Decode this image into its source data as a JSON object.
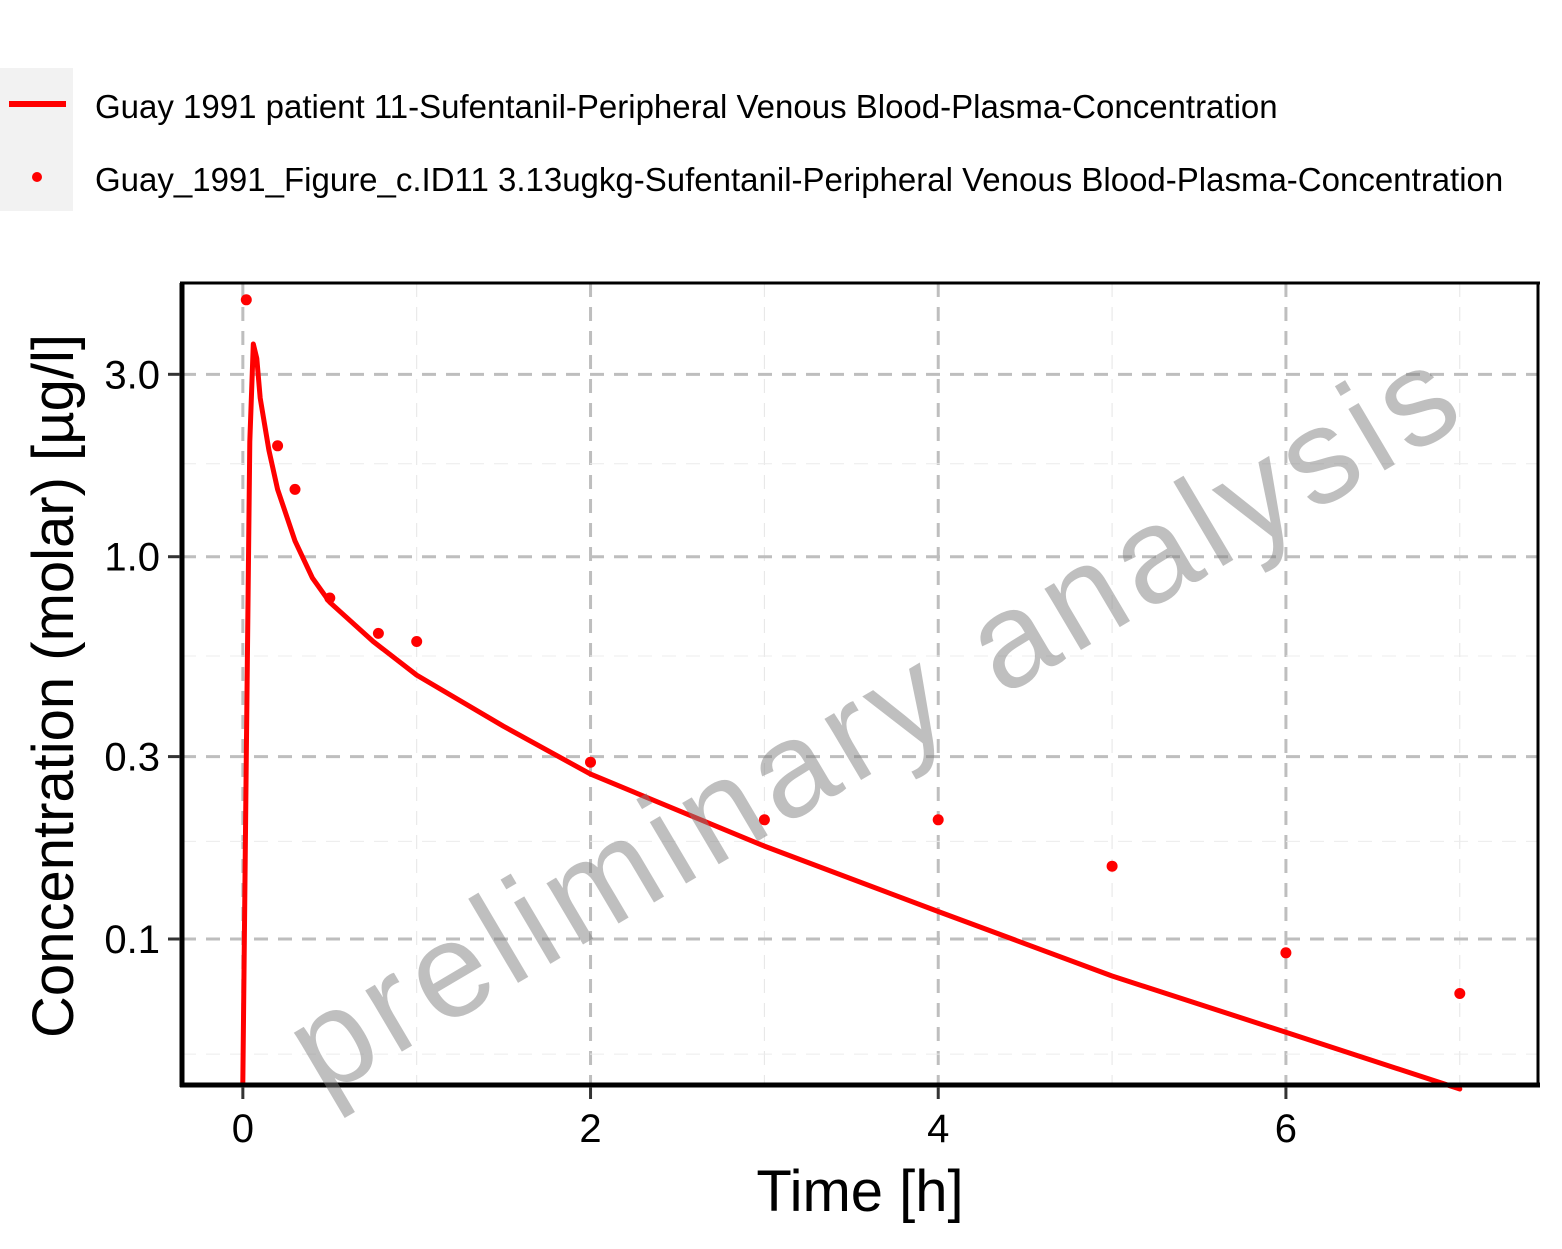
{
  "chart_data": {
    "type": "line",
    "xlabel": "Time [h]",
    "ylabel": "Concentration (molar) [µg/l]",
    "x_scale": "linear",
    "y_scale": "log",
    "xlim": [
      -0.35,
      7.45
    ],
    "ylim": [
      0.0415,
      5.2
    ],
    "x_ticks": [
      {
        "value": 0,
        "label": "0"
      },
      {
        "value": 2,
        "label": "2"
      },
      {
        "value": 4,
        "label": "4"
      },
      {
        "value": 6,
        "label": "6"
      }
    ],
    "y_ticks": [
      {
        "value": 0.1,
        "label": "0.1"
      },
      {
        "value": 0.3,
        "label": "0.3"
      },
      {
        "value": 1.0,
        "label": "1.0"
      },
      {
        "value": 3.0,
        "label": "3.0"
      }
    ],
    "grid": true,
    "legend_position": "top",
    "watermark": "preliminary analysis",
    "series": [
      {
        "name": "Guay 1991 patient 11-Sufentanil-Peripheral Venous Blood-Plasma-Concentration",
        "kind": "line",
        "color": "#ff0000",
        "points": [
          [
            0.0,
            0.0415
          ],
          [
            0.02,
            0.3
          ],
          [
            0.04,
            2.0
          ],
          [
            0.06,
            3.6
          ],
          [
            0.08,
            3.3
          ],
          [
            0.1,
            2.6
          ],
          [
            0.15,
            1.9
          ],
          [
            0.2,
            1.5
          ],
          [
            0.3,
            1.1
          ],
          [
            0.4,
            0.88
          ],
          [
            0.5,
            0.76
          ],
          [
            0.75,
            0.6
          ],
          [
            1.0,
            0.49
          ],
          [
            1.5,
            0.36
          ],
          [
            2.0,
            0.27
          ],
          [
            3.0,
            0.175
          ],
          [
            4.0,
            0.118
          ],
          [
            5.0,
            0.08
          ],
          [
            6.0,
            0.057
          ],
          [
            7.0,
            0.0405
          ]
        ]
      },
      {
        "name": "Guay_1991_Figure_c.ID11 3.13ugkg-Sufentanil-Peripheral Venous Blood-Plasma-Concentration",
        "kind": "scatter",
        "color": "#ff0000",
        "points": [
          [
            0.02,
            4.7
          ],
          [
            0.2,
            1.95
          ],
          [
            0.3,
            1.5
          ],
          [
            0.5,
            0.78
          ],
          [
            0.78,
            0.63
          ],
          [
            1.0,
            0.6
          ],
          [
            2.0,
            0.29
          ],
          [
            3.0,
            0.205
          ],
          [
            4.0,
            0.205
          ],
          [
            5.0,
            0.155
          ],
          [
            6.0,
            0.092
          ],
          [
            7.0,
            0.072
          ]
        ]
      }
    ]
  }
}
